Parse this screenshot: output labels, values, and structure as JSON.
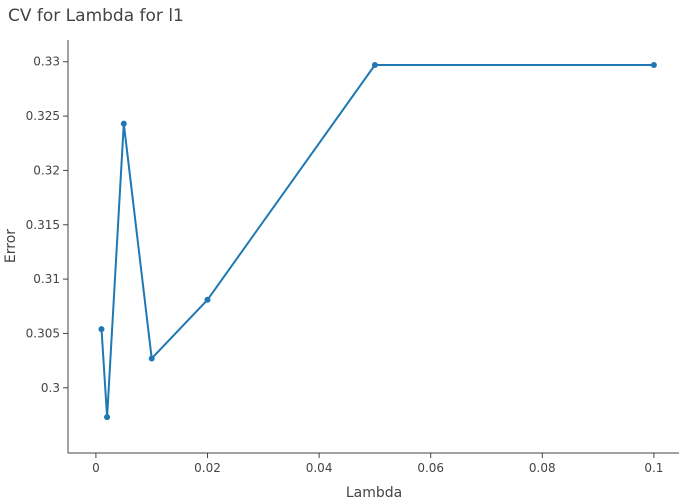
{
  "chart_data": {
    "type": "line",
    "title": "CV for Lambda for l1",
    "xlabel": "Lambda",
    "ylabel": "Error",
    "x": [
      0.001,
      0.002,
      0.005,
      0.01,
      0.02,
      0.05,
      0.1
    ],
    "series": [
      {
        "values": [
          0.3054,
          0.2973,
          0.3243,
          0.3027,
          0.3081,
          0.3297,
          0.3297
        ],
        "color": "#1f77b4"
      }
    ],
    "xlim": [
      -0.005,
      0.1045
    ],
    "ylim": [
      0.294,
      0.332
    ],
    "xticks": [
      0,
      0.02,
      0.04,
      0.06,
      0.08,
      0.1
    ],
    "xtick_labels": [
      "0",
      "0.02",
      "0.04",
      "0.06",
      "0.08",
      "0.1"
    ],
    "yticks": [
      0.3,
      0.305,
      0.31,
      0.315,
      0.32,
      0.325,
      0.33
    ],
    "ytick_labels": [
      "0.3",
      "0.305",
      "0.31",
      "0.315",
      "0.32",
      "0.325",
      "0.33"
    ],
    "grid": false,
    "legend": "none",
    "axis_color": "#444444"
  }
}
